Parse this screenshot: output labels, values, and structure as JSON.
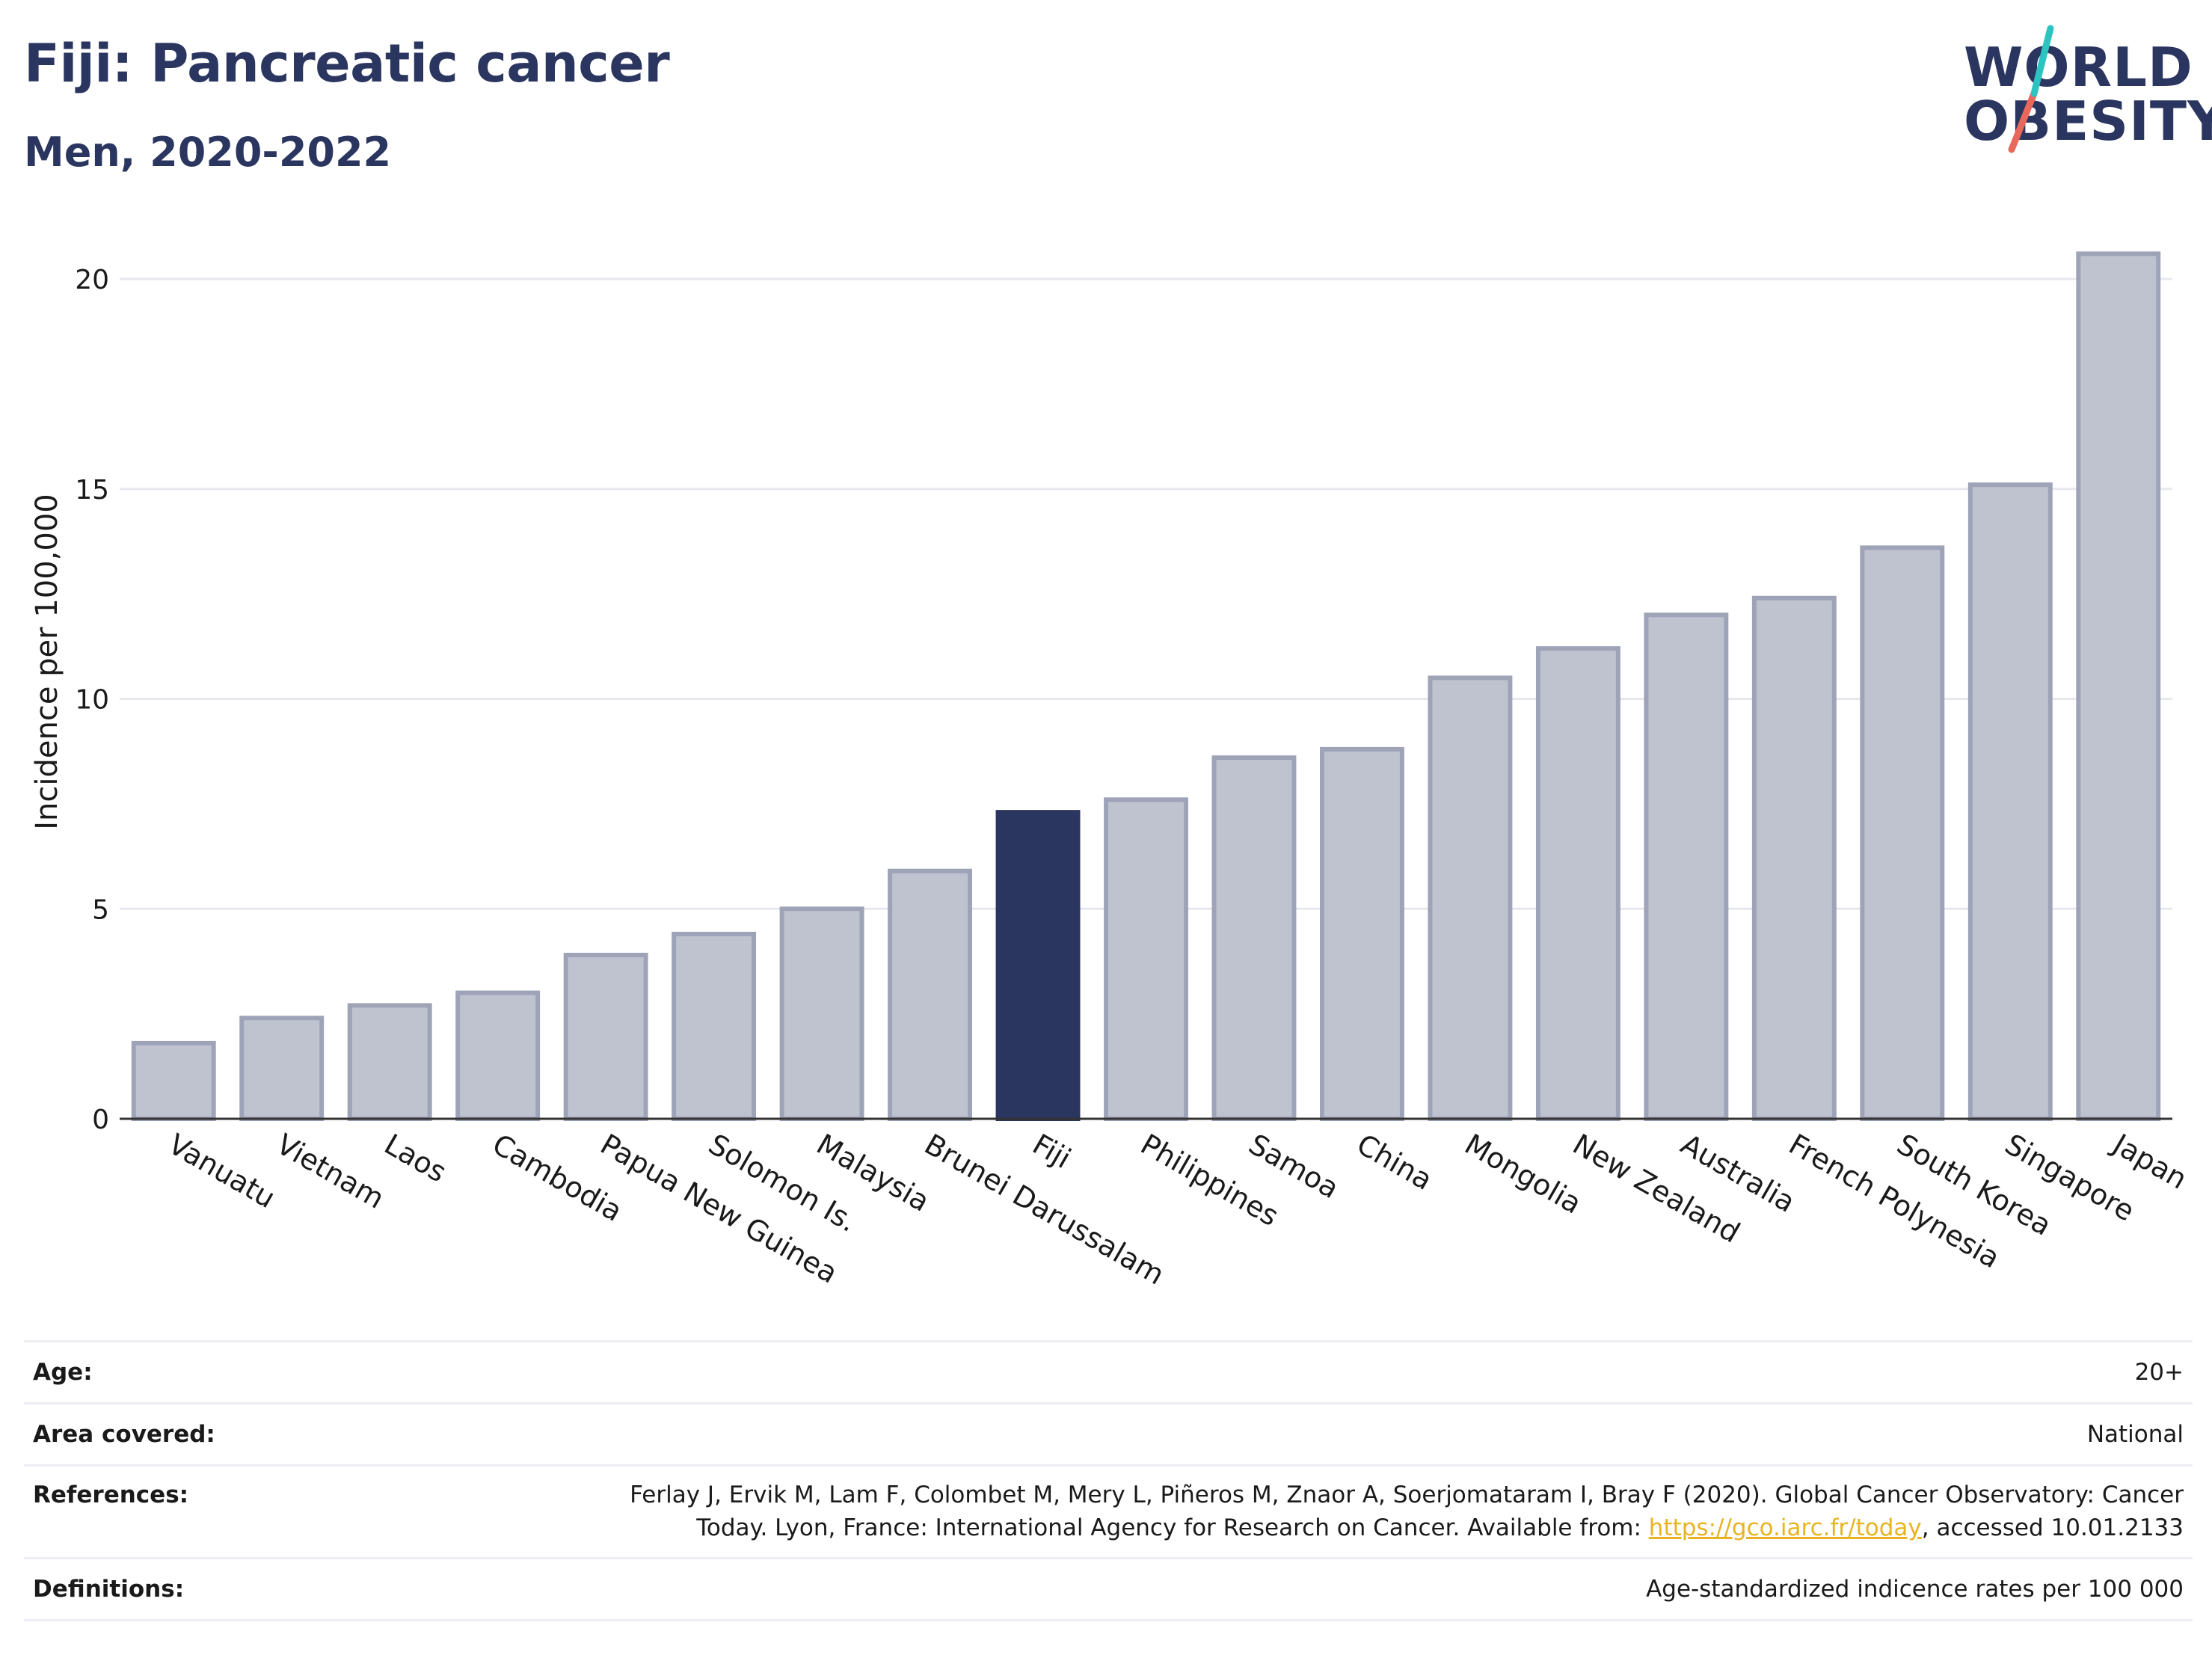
{
  "header": {
    "title": "Fiji: Pancreatic cancer",
    "subtitle": "Men, 2020-2022"
  },
  "logo": {
    "line1": "WORLD",
    "line2": "OBESITY",
    "slash_colors": [
      "#2cc4c0",
      "#e8695c"
    ]
  },
  "colors": {
    "highlight": "#2b3660",
    "bar_fill": "#bfc3d0",
    "bar_stroke": "#9ea3b8",
    "grid": "#e6e8ee",
    "axis": "#333333"
  },
  "chart_data": {
    "type": "bar",
    "ylabel": "Incidence per 100,000",
    "xlabel": "",
    "ylim": [
      0,
      21.5
    ],
    "yticks": [
      0,
      5,
      10,
      15,
      20
    ],
    "grid": true,
    "highlight": "Fiji",
    "categories": [
      "Vanuatu",
      "Vietnam",
      "Laos",
      "Cambodia",
      "Papua New Guinea",
      "Solomon Is.",
      "Malaysia",
      "Brunei Darussalam",
      "Fiji",
      "Philippines",
      "Samoa",
      "China",
      "Mongolia",
      "New Zealand",
      "Australia",
      "French Polynesia",
      "South Korea",
      "Singapore",
      "Japan"
    ],
    "values": [
      1.8,
      2.4,
      2.7,
      3.0,
      3.9,
      4.4,
      5.0,
      5.9,
      7.3,
      7.6,
      8.6,
      8.8,
      10.5,
      11.2,
      12.0,
      12.4,
      13.6,
      15.1,
      20.6
    ]
  },
  "info": {
    "age_label": "Age:",
    "age_value": "20+",
    "area_label": "Area covered:",
    "area_value": "National",
    "references_label": "References:",
    "references_line1": "Ferlay J, Ervik M, Lam F, Colombet M, Mery L, Piñeros M, Znaor A, Soerjomataram I, Bray F (2020). Global Cancer Observatory: Cancer",
    "references_line2_pre": "Today. Lyon, France: International Agency for Research on Cancer. Available from: ",
    "references_link": "https://gco.iarc.fr/today",
    "references_line2_post": ", accessed 10.01.2133",
    "definitions_label": "Definitions:",
    "definitions_value": "Age-standardized indicence rates per 100 000"
  }
}
